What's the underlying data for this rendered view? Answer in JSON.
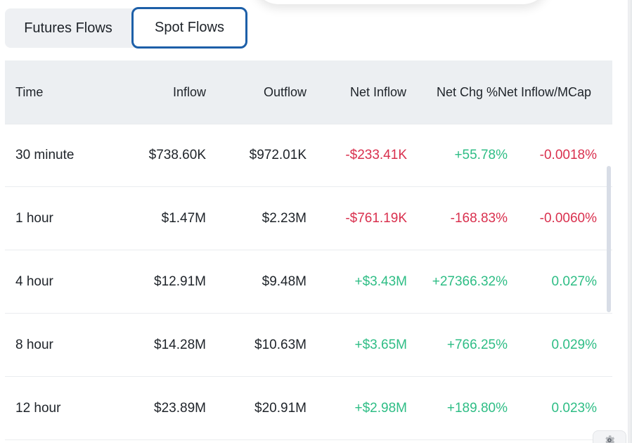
{
  "tabs": [
    {
      "label": "Futures Flows",
      "active": false
    },
    {
      "label": "Spot Flows",
      "active": true
    }
  ],
  "table": {
    "headers": {
      "time": "Time",
      "inflow": "Inflow",
      "outflow": "Outflow",
      "net_inflow": "Net Inflow",
      "net_chg": "Net Chg %",
      "net_mcap": "Net Inflow/MCap"
    },
    "rows": [
      {
        "time": "30 minute",
        "inflow": "$738.60K",
        "outflow": "$972.01K",
        "net_inflow": "-$233.41K",
        "net_chg": "+55.78%",
        "net_mcap": "-0.0018%"
      },
      {
        "time": "1 hour",
        "inflow": "$1.47M",
        "outflow": "$2.23M",
        "net_inflow": "-$761.19K",
        "net_chg": "-168.83%",
        "net_mcap": "-0.0060%"
      },
      {
        "time": "4 hour",
        "inflow": "$12.91M",
        "outflow": "$9.48M",
        "net_inflow": "+$3.43M",
        "net_chg": "+27366.32%",
        "net_mcap": "0.027%"
      },
      {
        "time": "8 hour",
        "inflow": "$14.28M",
        "outflow": "$10.63M",
        "net_inflow": "+$3.65M",
        "net_chg": "+766.25%",
        "net_mcap": "0.029%"
      },
      {
        "time": "12 hour",
        "inflow": "$23.89M",
        "outflow": "$20.91M",
        "net_inflow": "+$2.98M",
        "net_chg": "+189.80%",
        "net_mcap": "0.023%"
      }
    ]
  },
  "colors": {
    "negative": "#d9304e",
    "positive": "#2ebd85",
    "active_tab_border": "#1d5fa8"
  },
  "icons": {
    "settings": "gear-icon"
  }
}
